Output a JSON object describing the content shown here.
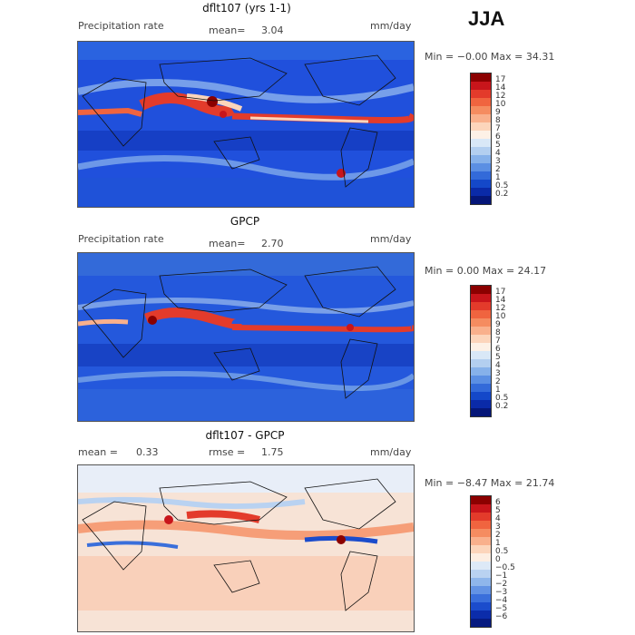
{
  "season": "JJA",
  "panels": [
    {
      "title": "dflt107 (yrs 1-1)",
      "left_label": "Precipitation rate",
      "mid_label": "mean=",
      "mid_value": "3.04",
      "right_label": "mm/day",
      "minmax": "Min =  −0.00 Max =  34.31",
      "colorbar_labels": [
        "17",
        "14",
        "12",
        "10",
        "9",
        "8",
        "7",
        "6",
        "5",
        "4",
        "3",
        "2",
        "1",
        "0.5",
        "0.2"
      ],
      "colors": [
        "#8b0000",
        "#c8151b",
        "#e33b2b",
        "#f0643f",
        "#f58c60",
        "#f9b08c",
        "#fcd5bb",
        "#fdf1e6",
        "#d9e8f7",
        "#b3cff0",
        "#86b1ea",
        "#5b8fe3",
        "#336ad9",
        "#1448c9",
        "#0a2aa8",
        "#051678"
      ]
    },
    {
      "title": "GPCP",
      "left_label": "Precipitation rate",
      "mid_label": "mean=",
      "mid_value": "2.70",
      "right_label": "mm/day",
      "minmax": "Min =   0.00 Max =  24.17",
      "colorbar_labels": [
        "17",
        "14",
        "12",
        "10",
        "9",
        "8",
        "7",
        "6",
        "5",
        "4",
        "3",
        "2",
        "1",
        "0.5",
        "0.2"
      ],
      "colors": [
        "#8b0000",
        "#c8151b",
        "#e33b2b",
        "#f0643f",
        "#f58c60",
        "#f9b08c",
        "#fcd5bb",
        "#fdf1e6",
        "#d9e8f7",
        "#b3cff0",
        "#86b1ea",
        "#5b8fe3",
        "#336ad9",
        "#1448c9",
        "#0a2aa8",
        "#051678"
      ]
    },
    {
      "title": "dflt107 - GPCP",
      "left_label": "mean =",
      "left_value": "0.33",
      "mid_label": "rmse =",
      "mid_value": "1.75",
      "right_label": "mm/day",
      "minmax": "Min =  −8.47 Max =  21.74",
      "colorbar_labels": [
        "6",
        "5",
        "4",
        "3",
        "2",
        "1",
        "0.5",
        "0",
        "−0.5",
        "−1",
        "−2",
        "−3",
        "−4",
        "−5",
        "−6"
      ],
      "colors": [
        "#8b0000",
        "#c8151b",
        "#e33b2b",
        "#f0643f",
        "#f58c60",
        "#f9b08c",
        "#fcd5bb",
        "#fdeee2",
        "#dde9f7",
        "#b9d2f1",
        "#8fb6eb",
        "#6393e4",
        "#3a6fdb",
        "#1b4ccc",
        "#0b2caa",
        "#061a80"
      ]
    }
  ]
}
